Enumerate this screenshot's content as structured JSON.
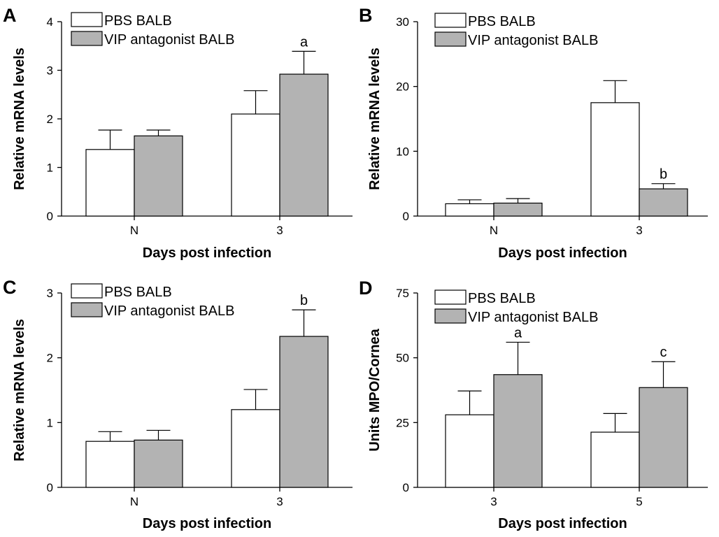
{
  "chart_data": [
    {
      "panel": "A",
      "type": "bar",
      "categories": [
        "N",
        "3"
      ],
      "series": [
        {
          "name": "PBS BALB",
          "values": [
            1.37,
            2.1
          ],
          "errors": [
            0.4,
            0.48
          ]
        },
        {
          "name": "VIP antagonist BALB",
          "values": [
            1.65,
            2.92
          ],
          "errors": [
            0.12,
            0.47
          ]
        }
      ],
      "annotations": [
        {
          "category": "3",
          "series": 1,
          "text": "a"
        }
      ],
      "xlabel": "Days post infection",
      "ylabel": "Relative mRNA levels",
      "ylim": [
        0,
        4
      ],
      "yticks": [
        0,
        1,
        2,
        3,
        4
      ],
      "grid": false,
      "legend": "top-left"
    },
    {
      "panel": "B",
      "type": "bar",
      "categories": [
        "N",
        "3"
      ],
      "series": [
        {
          "name": "PBS BALB",
          "values": [
            1.9,
            17.5
          ],
          "errors": [
            0.6,
            3.4
          ]
        },
        {
          "name": "VIP antagonist BALB",
          "values": [
            2.0,
            4.2
          ],
          "errors": [
            0.7,
            0.8
          ]
        }
      ],
      "annotations": [
        {
          "category": "3",
          "series": 1,
          "text": "b"
        }
      ],
      "xlabel": "Days post infection",
      "ylabel": "Relative mRNA levels",
      "ylim": [
        0,
        30
      ],
      "yticks": [
        0,
        10,
        20,
        30
      ],
      "grid": false,
      "legend": "top-left"
    },
    {
      "panel": "C",
      "type": "bar",
      "categories": [
        "N",
        "3"
      ],
      "series": [
        {
          "name": "PBS BALB",
          "values": [
            0.71,
            1.2
          ],
          "errors": [
            0.15,
            0.31
          ]
        },
        {
          "name": "VIP antagonist BALB",
          "values": [
            0.73,
            2.33
          ],
          "errors": [
            0.15,
            0.41
          ]
        }
      ],
      "annotations": [
        {
          "category": "3",
          "series": 1,
          "text": "b"
        }
      ],
      "xlabel": "Days post infection",
      "ylabel": "Relative mRNA levels",
      "ylim": [
        0,
        3
      ],
      "yticks": [
        0,
        1,
        2,
        3
      ],
      "grid": false,
      "legend": "top-left"
    },
    {
      "panel": "D",
      "type": "bar",
      "categories": [
        "3",
        "5"
      ],
      "series": [
        {
          "name": "PBS BALB",
          "values": [
            28,
            21.3
          ],
          "errors": [
            9.2,
            7.2
          ]
        },
        {
          "name": "VIP antagonist BALB",
          "values": [
            43.5,
            38.5
          ],
          "errors": [
            12.5,
            10.0
          ]
        }
      ],
      "annotations": [
        {
          "category": "3",
          "series": 1,
          "text": "a"
        },
        {
          "category": "5",
          "series": 1,
          "text": "c"
        }
      ],
      "xlabel": "Days post infection",
      "ylabel": "Units MPO/Cornea",
      "ylim": [
        0,
        75
      ],
      "yticks": [
        0,
        25,
        50,
        75
      ],
      "grid": false,
      "legend": "top-left"
    }
  ],
  "colors": {
    "pbs_fill": "#ffffff",
    "vip_fill": "#b3b3b3",
    "axis": "#000000"
  }
}
